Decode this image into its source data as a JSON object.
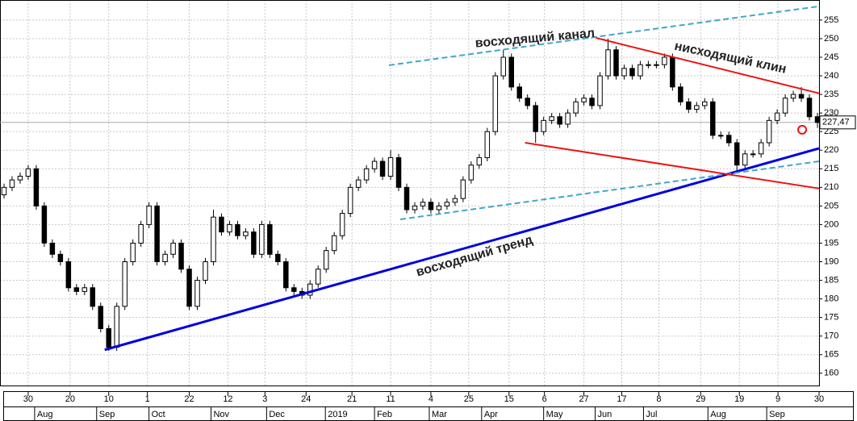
{
  "chart_data": {
    "type": "candlestick",
    "up_color": "#ffffff",
    "down_color": "#000000",
    "edge_color": "#000000",
    "ylim": [
      156.7,
      260.4
    ],
    "xlim": [
      -0.5,
      101.2
    ],
    "grid": true,
    "yticks": [
      160,
      165,
      170,
      175,
      180,
      185,
      190,
      195,
      200,
      205,
      210,
      215,
      220,
      225,
      230,
      235,
      240,
      245,
      250,
      255
    ],
    "xticks": [
      {
        "value": 3,
        "label": "30"
      },
      {
        "value": 8.2,
        "label": "20"
      },
      {
        "value": 13,
        "label": "10"
      },
      {
        "value": 17.8,
        "label": "1"
      },
      {
        "value": 23,
        "label": "22"
      },
      {
        "value": 27.8,
        "label": "12"
      },
      {
        "value": 32.4,
        "label": "3"
      },
      {
        "value": 37.5,
        "label": "24"
      },
      {
        "value": 43.2,
        "label": "21"
      },
      {
        "value": 48,
        "label": "11"
      },
      {
        "value": 53,
        "label": "4"
      },
      {
        "value": 57.7,
        "label": "25"
      },
      {
        "value": 62.7,
        "label": "15"
      },
      {
        "value": 67.1,
        "label": "6"
      },
      {
        "value": 72,
        "label": "27"
      },
      {
        "value": 76.7,
        "label": "17"
      },
      {
        "value": 81.3,
        "label": "8"
      },
      {
        "value": 86.5,
        "label": "29"
      },
      {
        "value": 91.3,
        "label": "19"
      },
      {
        "value": 96.1,
        "label": "9"
      },
      {
        "value": 101.2,
        "label": "30"
      }
    ],
    "month_ticks": [
      {
        "value": 3.8,
        "label": "Aug"
      },
      {
        "value": 11.5,
        "label": "Sep"
      },
      {
        "value": 18,
        "label": "Oct"
      },
      {
        "value": 25.7,
        "label": "Nov"
      },
      {
        "value": 32.6,
        "label": "Dec"
      },
      {
        "value": 39.9,
        "label": "2019"
      },
      {
        "value": 46,
        "label": "Feb"
      },
      {
        "value": 52.8,
        "label": "Mar"
      },
      {
        "value": 59.3,
        "label": "Apr"
      },
      {
        "value": 67,
        "label": "May"
      },
      {
        "value": 73.4,
        "label": "Jun"
      },
      {
        "value": 79.4,
        "label": "Jul"
      },
      {
        "value": 87.4,
        "label": "Aug"
      },
      {
        "value": 94.7,
        "label": "Sep"
      }
    ],
    "ohlc": [
      [
        208,
        211,
        207,
        210
      ],
      [
        210,
        213,
        209,
        212
      ],
      [
        212,
        214,
        211,
        213
      ],
      [
        213,
        216,
        212,
        215
      ],
      [
        215,
        216,
        204,
        205
      ],
      [
        205,
        206,
        194,
        195
      ],
      [
        195,
        196,
        191,
        192
      ],
      [
        192,
        193,
        189,
        190
      ],
      [
        190,
        191,
        182,
        183
      ],
      [
        183,
        184,
        181,
        182
      ],
      [
        182,
        184,
        181,
        183
      ],
      [
        183,
        184,
        177,
        178
      ],
      [
        178,
        179,
        171,
        172
      ],
      [
        172,
        173,
        166,
        167
      ],
      [
        167,
        179,
        166,
        178
      ],
      [
        178,
        191,
        177,
        190
      ],
      [
        190,
        196,
        189,
        195
      ],
      [
        195,
        201,
        194,
        200
      ],
      [
        200,
        206,
        199,
        205
      ],
      [
        205,
        206,
        189,
        190
      ],
      [
        190,
        193,
        189,
        192
      ],
      [
        192,
        196,
        191,
        195
      ],
      [
        195,
        196,
        187,
        188
      ],
      [
        188,
        189,
        177,
        178
      ],
      [
        178,
        186,
        177,
        185
      ],
      [
        185,
        191,
        184,
        190
      ],
      [
        190,
        204,
        189,
        202
      ],
      [
        202,
        203,
        197,
        198
      ],
      [
        198,
        201,
        197,
        200
      ],
      [
        200,
        201,
        196,
        197
      ],
      [
        197,
        199,
        196,
        198
      ],
      [
        198,
        199,
        191,
        192
      ],
      [
        192,
        201,
        191,
        200
      ],
      [
        200,
        201,
        191,
        192
      ],
      [
        192,
        193,
        189,
        190
      ],
      [
        190,
        191,
        182,
        183
      ],
      [
        183,
        184,
        181,
        182
      ],
      [
        182,
        183,
        180,
        181
      ],
      [
        181,
        185,
        180,
        184
      ],
      [
        184,
        189,
        183,
        188
      ],
      [
        188,
        194,
        187,
        193
      ],
      [
        193,
        198,
        192,
        197
      ],
      [
        197,
        204,
        196,
        203
      ],
      [
        203,
        211,
        202,
        210
      ],
      [
        210,
        213,
        209,
        212
      ],
      [
        212,
        216,
        211,
        215
      ],
      [
        215,
        218,
        214,
        217
      ],
      [
        217,
        218,
        212,
        213
      ],
      [
        213,
        220,
        212,
        218
      ],
      [
        218,
        219,
        209,
        210
      ],
      [
        210,
        211,
        203,
        204
      ],
      [
        204,
        206,
        203,
        205
      ],
      [
        205,
        207,
        204,
        206
      ],
      [
        206,
        207,
        203,
        204
      ],
      [
        204,
        206,
        203,
        205
      ],
      [
        205,
        207,
        204,
        206
      ],
      [
        206,
        208,
        205,
        207
      ],
      [
        207,
        213,
        206,
        212
      ],
      [
        212,
        217,
        211,
        216
      ],
      [
        216,
        219,
        215,
        218
      ],
      [
        218,
        226,
        217,
        225
      ],
      [
        225,
        241,
        224,
        240
      ],
      [
        240,
        247,
        239,
        245
      ],
      [
        245,
        246,
        236,
        237
      ],
      [
        237,
        238,
        233,
        234
      ],
      [
        234,
        235,
        231,
        232
      ],
      [
        232,
        233,
        222,
        225
      ],
      [
        225,
        229,
        224,
        228
      ],
      [
        228,
        230,
        227,
        229
      ],
      [
        229,
        230,
        226,
        227
      ],
      [
        227,
        231,
        226,
        230
      ],
      [
        230,
        234,
        229,
        233
      ],
      [
        233,
        235,
        232,
        234
      ],
      [
        234,
        235,
        231,
        232
      ],
      [
        232,
        241,
        231,
        240
      ],
      [
        240,
        250,
        239,
        247
      ],
      [
        247,
        248,
        239,
        240
      ],
      [
        240,
        243,
        239,
        242
      ],
      [
        242,
        243,
        239,
        240
      ],
      [
        240,
        244,
        239,
        243
      ],
      [
        243,
        244,
        242,
        243
      ],
      [
        243,
        244,
        242,
        243
      ],
      [
        243,
        246,
        242,
        245
      ],
      [
        245,
        246,
        236,
        237
      ],
      [
        237,
        238,
        232,
        233
      ],
      [
        233,
        234,
        230,
        231
      ],
      [
        231,
        233,
        230,
        232
      ],
      [
        232,
        234,
        231,
        233
      ],
      [
        233,
        234,
        223,
        224
      ],
      [
        224,
        225,
        223,
        224
      ],
      [
        224,
        225,
        221,
        222
      ],
      [
        222,
        223,
        214,
        216
      ],
      [
        216,
        220,
        215,
        219
      ],
      [
        219,
        220,
        218,
        219
      ],
      [
        219,
        223,
        218,
        222
      ],
      [
        222,
        229,
        221,
        228
      ],
      [
        228,
        231,
        227,
        230
      ],
      [
        230,
        235,
        229,
        234
      ],
      [
        234,
        236,
        233,
        235
      ],
      [
        235,
        237,
        233,
        234
      ],
      [
        234,
        235,
        228,
        229
      ],
      [
        229,
        230,
        226,
        227.47
      ]
    ],
    "last_price": {
      "value": 227.47,
      "label": "227,47"
    },
    "trend_lines": [
      {
        "label": "восходящий тренд",
        "color": "#0000dd",
        "width": 3,
        "dashed": false,
        "x": [
          12.5,
          101.2
        ],
        "y": [
          166.3,
          220.5
        ]
      },
      {
        "label": "восходящий канал",
        "color": "#3fa7c9",
        "width": 2,
        "dashed": true,
        "x": [
          47.8,
          101.2
        ],
        "y": [
          242.85,
          258.7
        ]
      },
      {
        "color": "#3fa7c9",
        "width": 2,
        "dashed": true,
        "x": [
          49.2,
          101.2
        ],
        "y": [
          201.4,
          217.0
        ]
      },
      {
        "label": "нисходящий клин",
        "color": "#ee1111",
        "width": 2,
        "dashed": false,
        "x": [
          73.5,
          101.2
        ],
        "y": [
          250.2,
          235.3
        ]
      },
      {
        "color": "#ee1111",
        "width": 2,
        "dashed": false,
        "x": [
          64.7,
          101.2
        ],
        "y": [
          222.0,
          209.7
        ]
      }
    ],
    "marker": {
      "color": "#ee1111",
      "x": 99.1,
      "y": 225.5
    }
  }
}
